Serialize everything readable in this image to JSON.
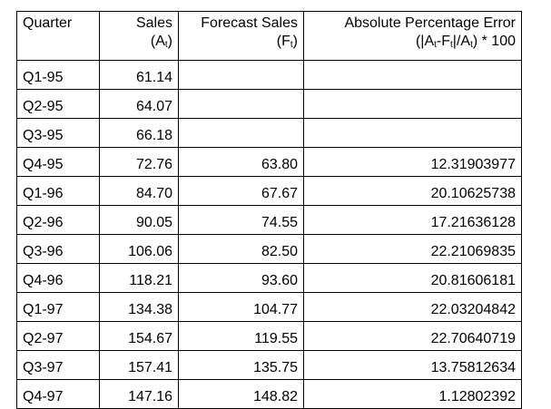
{
  "table": {
    "headers": {
      "quarter": "Quarter",
      "sales": {
        "line1": "Sales",
        "line2_prefix": "(A",
        "line2_sub": "t",
        "line2_suffix": ")"
      },
      "forecast": {
        "line1": "Forecast Sales",
        "line2_prefix": "(F",
        "line2_sub": "t",
        "line2_suffix": ")"
      },
      "ape": {
        "line1": "Absolute Percentage Error",
        "line2_p1": "(|A",
        "line2_s1": "t",
        "line2_p2": "-F",
        "line2_s2": "t",
        "line2_p3": "|/A",
        "line2_s3": "t",
        "line2_p4": ") * 100"
      }
    },
    "rows": [
      {
        "quarter": "Q1-95",
        "sales": "61.14",
        "forecast": "",
        "ape": ""
      },
      {
        "quarter": "Q2-95",
        "sales": "64.07",
        "forecast": "",
        "ape": ""
      },
      {
        "quarter": "Q3-95",
        "sales": "66.18",
        "forecast": "",
        "ape": ""
      },
      {
        "quarter": "Q4-95",
        "sales": "72.76",
        "forecast": "63.80",
        "ape": "12.31903977"
      },
      {
        "quarter": "Q1-96",
        "sales": "84.70",
        "forecast": "67.67",
        "ape": "20.10625738"
      },
      {
        "quarter": "Q2-96",
        "sales": "90.05",
        "forecast": "74.55",
        "ape": "17.21636128"
      },
      {
        "quarter": "Q3-96",
        "sales": "106.06",
        "forecast": "82.50",
        "ape": "22.21069835"
      },
      {
        "quarter": "Q4-96",
        "sales": "118.21",
        "forecast": "93.60",
        "ape": "20.81606181"
      },
      {
        "quarter": "Q1-97",
        "sales": "134.38",
        "forecast": "104.77",
        "ape": "22.03204842"
      },
      {
        "quarter": "Q2-97",
        "sales": "154.67",
        "forecast": "119.55",
        "ape": "22.70640719"
      },
      {
        "quarter": "Q3-97",
        "sales": "157.41",
        "forecast": "135.75",
        "ape": "13.75812634"
      },
      {
        "quarter": "Q4-97",
        "sales": "147.16",
        "forecast": "148.82",
        "ape": "1.12802392"
      }
    ]
  }
}
